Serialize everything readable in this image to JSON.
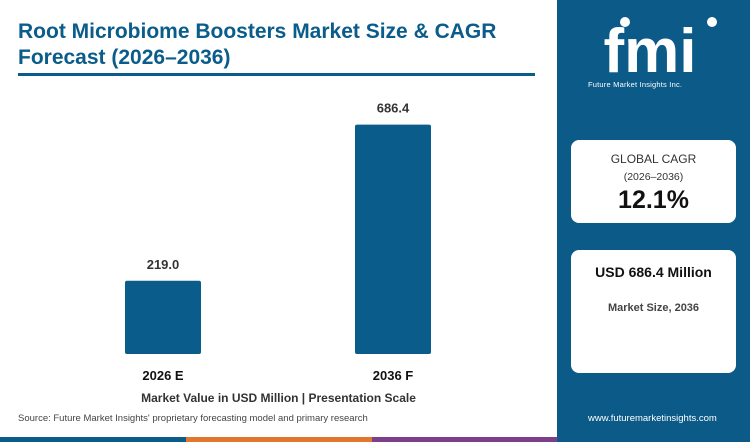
{
  "title": "Root Microbiome Boosters Market Size & CAGR Forecast (2026–2036)",
  "caption": "Market Value in USD Million | Presentation Scale",
  "source": "Source: Future Market Insights' proprietary forecasting model and primary research",
  "chart_data": {
    "type": "bar",
    "title": "Root Microbiome Boosters Market Size & CAGR Forecast (2026–2036)",
    "categories": [
      "2026 E",
      "2036 F"
    ],
    "values": [
      219.0,
      686.4
    ],
    "value_labels": [
      "219.0",
      "686.4"
    ],
    "xlabel": "Market Value in USD Million | Presentation Scale",
    "ylabel": "",
    "ylim": [
      0,
      760
    ],
    "grid": false,
    "bar_color": "#0a5c8a"
  },
  "brand": {
    "logo_text": "fmi",
    "logo_subtitle": "Future Market Insights Inc.",
    "url": "www.futuremarketinsights.com",
    "panel_color": "#0b5a87"
  },
  "cagr_card": {
    "label": "GLOBAL CAGR",
    "period": "(2026–2036)",
    "value": "12.1%"
  },
  "size_card": {
    "value": "USD 686.4 Million",
    "label": "Market Size, 2036"
  },
  "bottom_stripe_colors": [
    "#0a5c8a",
    "#e0772a",
    "#7b3f8c"
  ]
}
